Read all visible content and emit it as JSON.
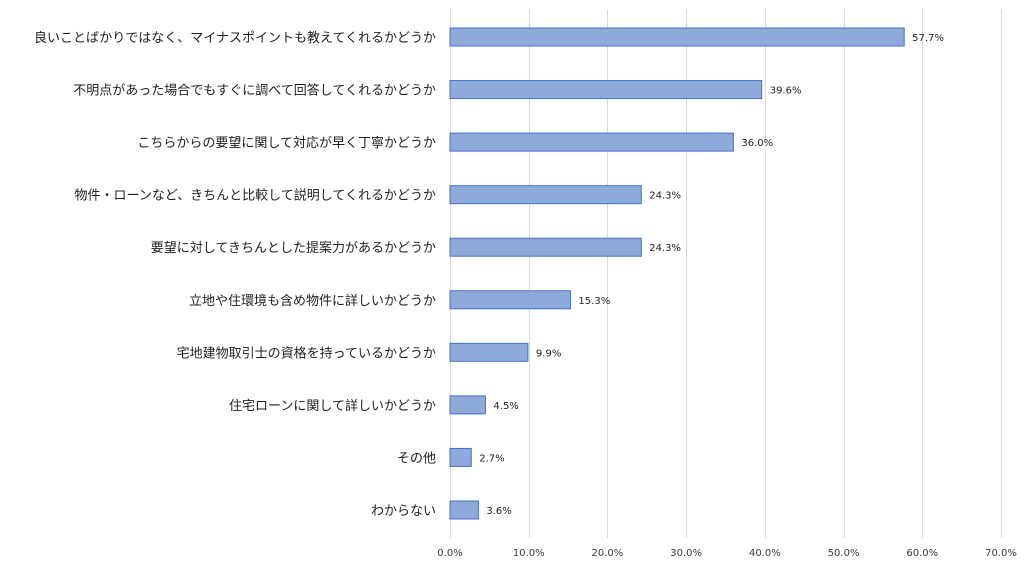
{
  "chart_data": {
    "type": "bar",
    "orientation": "horizontal",
    "title": "",
    "xlabel": "",
    "ylabel": "",
    "categories": [
      "良いことばかりではなく、マイナスポイントも教えてくれるかどうか",
      "不明点があった場合でもすぐに調べて回答してくれるかどうか",
      "こちらからの要望に関して対応が早く丁寧かどうか",
      "物件・ローンなど、きちんと比較して説明してくれるかどうか",
      "要望に対してきちんとした提案力があるかどうか",
      "立地や住環境も含め物件に詳しいかどうか",
      "宅地建物取引士の資格を持っているかどうか",
      "住宅ローンに関して詳しいかどうか",
      "その他",
      "わからない"
    ],
    "values": [
      57.7,
      39.6,
      36.0,
      24.3,
      24.3,
      15.3,
      9.9,
      4.5,
      2.7,
      3.6
    ],
    "value_labels": [
      "57.7%",
      "39.6%",
      "36.0%",
      "24.3%",
      "24.3%",
      "15.3%",
      "9.9%",
      "4.5%",
      "2.7%",
      "3.6%"
    ],
    "xlim": [
      0,
      70
    ],
    "x_ticks": [
      0,
      10,
      20,
      30,
      40,
      50,
      60,
      70
    ],
    "x_tick_labels": [
      "0.0%",
      "10.0%",
      "20.0%",
      "30.0%",
      "40.0%",
      "50.0%",
      "60.0%",
      "70.0%"
    ],
    "grid": true,
    "legend": "none",
    "colors": {
      "bar_fill": "#8eaadb",
      "bar_stroke": "#4472c4",
      "grid": "#d9d9d9"
    }
  }
}
